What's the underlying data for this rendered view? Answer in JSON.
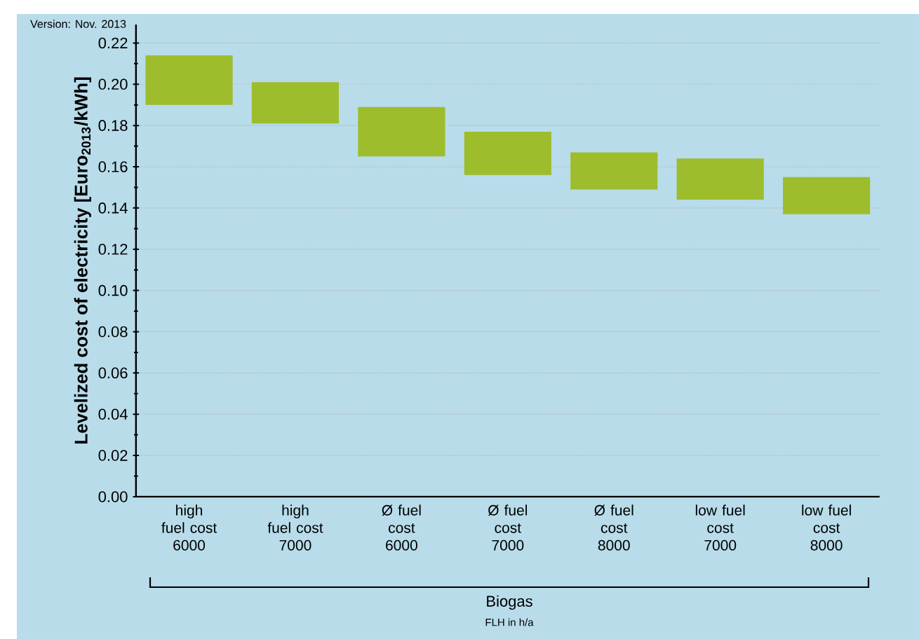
{
  "chart_data": {
    "type": "bar",
    "ylabel": "Levelized cost of electricity [Euro$_{2013}$/kWh]",
    "annotations": [
      "Version: Nov. 2013",
      "Biogas",
      "FLH in h/a"
    ],
    "categories": [
      "high fuel cost 6000",
      "high fuel cost 7000",
      "Ø fuel cost 6000",
      "Ø fuel cost 7000",
      "Ø fuel cost 8000",
      "low fuel cost 7000",
      "low fuel cost 8000"
    ],
    "base": [
      0.19,
      0.181,
      0.165,
      0.156,
      0.149,
      0.144,
      0.137
    ],
    "values": [
      0.024,
      0.02,
      0.024,
      0.021,
      0.018,
      0.02,
      0.018
    ],
    "color": "#9dbd2c",
    "ylim": [
      0,
      0.229
    ],
    "yticks": [
      {
        "value": 0,
        "label": "0.00"
      },
      {
        "value": 0.02,
        "label": "0.02"
      },
      {
        "value": 0.04,
        "label": "0.04"
      },
      {
        "value": 0.06,
        "label": "0.06"
      },
      {
        "value": 0.08,
        "label": "0.08"
      },
      {
        "value": 0.1,
        "label": "0.10"
      },
      {
        "value": 0.12,
        "label": "0.12"
      },
      {
        "value": 0.14,
        "label": "0.14"
      },
      {
        "value": 0.16,
        "label": "0.16"
      },
      {
        "value": 0.18,
        "label": "0.18"
      },
      {
        "value": 0.2,
        "label": "0.20"
      },
      {
        "value": 0.22,
        "label": "0.22"
      }
    ],
    "grid": "y"
  }
}
